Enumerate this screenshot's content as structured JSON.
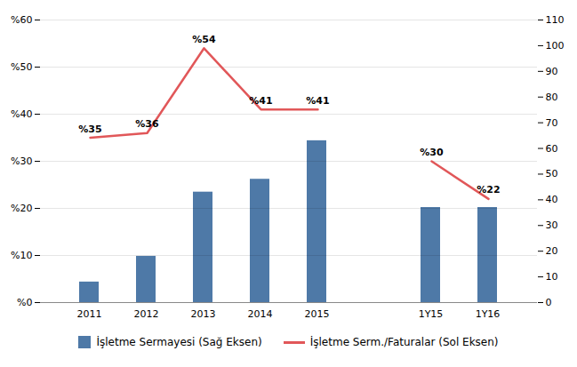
{
  "chart_data": {
    "type": "bar",
    "categories": [
      "2011",
      "2012",
      "2013",
      "2014",
      "2015",
      null,
      "1Y15",
      "1Y16"
    ],
    "series": [
      {
        "name": "İşletme Sermayesi (Sağ Eksen)",
        "type": "bar",
        "axis": "y2",
        "color": "#4e79a7",
        "values": [
          8,
          18,
          43,
          48,
          63,
          null,
          37,
          37
        ]
      },
      {
        "name": "İşletme Serm./Faturalar (Sol Eksen)",
        "type": "line",
        "color": "#e15759",
        "values": [
          35,
          36,
          54,
          41,
          41,
          null,
          30,
          22
        ],
        "value_labels": [
          "%35",
          "%36",
          "%54",
          "%41",
          "%41",
          null,
          "%30",
          "%22"
        ],
        "data_labels": true
      }
    ],
    "ylim": [
      0,
      60
    ],
    "yticks": [
      {
        "value": 0,
        "label": "%0"
      },
      {
        "value": 10,
        "label": "%10"
      },
      {
        "value": 20,
        "label": "%20"
      },
      {
        "value": 30,
        "label": "%30"
      },
      {
        "value": 40,
        "label": "%40"
      },
      {
        "value": 50,
        "label": "%50"
      },
      {
        "value": 60,
        "label": "%60"
      }
    ],
    "y2lim": [
      0,
      110
    ],
    "y2ticks": [
      0,
      10,
      20,
      30,
      40,
      50,
      60,
      70,
      80,
      90,
      100,
      110
    ],
    "grid": true,
    "legend": "bottom"
  }
}
